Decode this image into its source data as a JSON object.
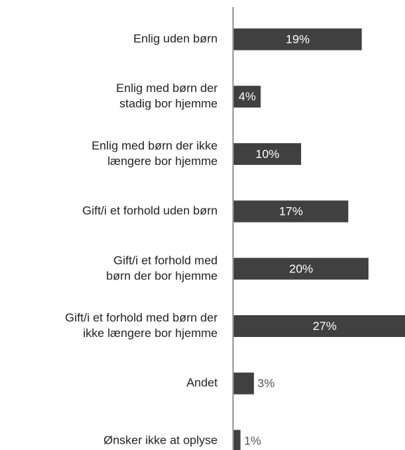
{
  "chart_data": {
    "type": "bar",
    "categories": [
      [
        "Enlig uden børn"
      ],
      [
        "Enlig med børn der",
        "stadig bor hjemme"
      ],
      [
        "Enlig med børn der ikke",
        "længere bor hjemme"
      ],
      [
        "Gift/i et forhold uden børn"
      ],
      [
        "Gift/i et forhold med",
        "børn der bor hjemme"
      ],
      [
        "Gift/i et forhold med børn der",
        "ikke længere bor hjemme"
      ],
      [
        "Andet"
      ],
      [
        "Ønsker ikke at oplyse"
      ]
    ],
    "values": [
      19,
      4,
      10,
      17,
      20,
      27,
      3,
      1
    ],
    "value_labels": [
      "19%",
      "4%",
      "10%",
      "17%",
      "20%",
      "27%",
      "3%",
      "1%"
    ],
    "color": "#404040"
  }
}
